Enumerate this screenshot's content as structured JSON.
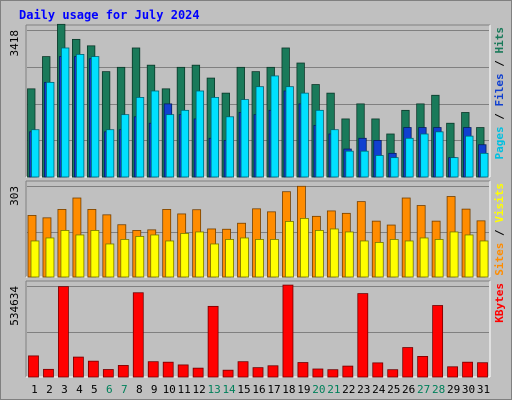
{
  "chart_data": {
    "title": "Daily usage for July 2024",
    "type": "bar",
    "days": [
      "1",
      "2",
      "3",
      "4",
      "5",
      "6",
      "7",
      "8",
      "9",
      "10",
      "11",
      "12",
      "13",
      "14",
      "15",
      "16",
      "17",
      "18",
      "19",
      "20",
      "21",
      "22",
      "23",
      "24",
      "25",
      "26",
      "27",
      "28",
      "29",
      "30",
      "31"
    ],
    "weekend_days": [
      "6",
      "7",
      "13",
      "14",
      "20",
      "21",
      "27",
      "28"
    ],
    "panels": [
      {
        "id": "traffic",
        "y_tick_label": "3418",
        "y_max": 3418,
        "side_label_parts": [
          {
            "text": "Pages",
            "color": "#00c0e0"
          },
          {
            "text": " / ",
            "color": "#000000"
          },
          {
            "text": "Files",
            "color": "#1040d0"
          },
          {
            "text": " / ",
            "color": "#000000"
          },
          {
            "text": "Hits",
            "color": "#1a7a5a"
          }
        ],
        "series": [
          {
            "name": "Hits",
            "color": "#1a7a5a",
            "values": [
              2050,
              2800,
              3550,
              3200,
              3050,
              2450,
              2550,
              3000,
              2600,
              2050,
              2550,
              2600,
              2300,
              1950,
              2550,
              2450,
              2550,
              3000,
              2650,
              2150,
              1950,
              1350,
              1700,
              1350,
              1000,
              1550,
              1700,
              1900,
              1250,
              1500,
              1150
            ]
          },
          {
            "name": "Files",
            "color": "#1040d0",
            "values": [
              1050,
              2200,
              2800,
              2800,
              2750,
              1050,
              1100,
              1400,
              1250,
              1700,
              1450,
              1350,
              900,
              850,
              1500,
              1450,
              1550,
              2000,
              1700,
              1200,
              1000,
              650,
              900,
              850,
              550,
              1150,
              1150,
              1150,
              450,
              1150,
              750
            ]
          },
          {
            "name": "Pages",
            "color": "#00e0ff",
            "values": [
              1100,
              2200,
              3000,
              2850,
              2800,
              1100,
              1450,
              1850,
              2000,
              1450,
              1550,
              2000,
              1850,
              1400,
              1800,
              2100,
              2350,
              2100,
              1950,
              1550,
              1100,
              600,
              600,
              500,
              450,
              900,
              1000,
              1050,
              450,
              950,
              550
            ]
          }
        ]
      },
      {
        "id": "visits",
        "y_tick_label": "303",
        "y_max": 303,
        "side_label_parts": [
          {
            "text": "Sites",
            "color": "#ff8c00"
          },
          {
            "text": " / ",
            "color": "#000000"
          },
          {
            "text": "Visits",
            "color": "#ffff00"
          }
        ],
        "series": [
          {
            "name": "Visits",
            "color": "#ff8c00",
            "values": [
              205,
              197,
              225,
              263,
              225,
              207,
              174,
              155,
              157,
              225,
              210,
              224,
              160,
              159,
              179,
              227,
              217,
              284,
              302,
              202,
              220,
              212,
              251,
              186,
              173,
              263,
              238,
              186,
              268,
              226,
              187
            ]
          },
          {
            "name": "Sites",
            "color": "#ffff00",
            "values": [
              120,
              130,
              155,
              140,
              155,
              110,
              125,
              135,
              140,
              120,
              145,
              150,
              110,
              125,
              130,
              125,
              125,
              185,
              195,
              155,
              160,
              150,
              120,
              115,
              125,
              120,
              130,
              125,
              150,
              140,
              120
            ]
          }
        ]
      },
      {
        "id": "kbytes",
        "y_tick_label": "534634",
        "y_max": 534634,
        "side_label_parts": [
          {
            "text": "KBytes",
            "color": "#ff0000"
          }
        ],
        "series": [
          {
            "name": "KBytes",
            "color": "#ff0000",
            "values": [
              124000,
              45000,
              531000,
              117000,
              93000,
              44000,
              68000,
              495000,
              90000,
              87000,
              71000,
              52000,
              415000,
              40000,
              90000,
              55000,
              66000,
              540000,
              85000,
              47000,
              43000,
              64000,
              490000,
              83000,
              43000,
              173000,
              121000,
              420000,
              60000,
              87000,
              84000
            ]
          }
        ]
      }
    ]
  }
}
